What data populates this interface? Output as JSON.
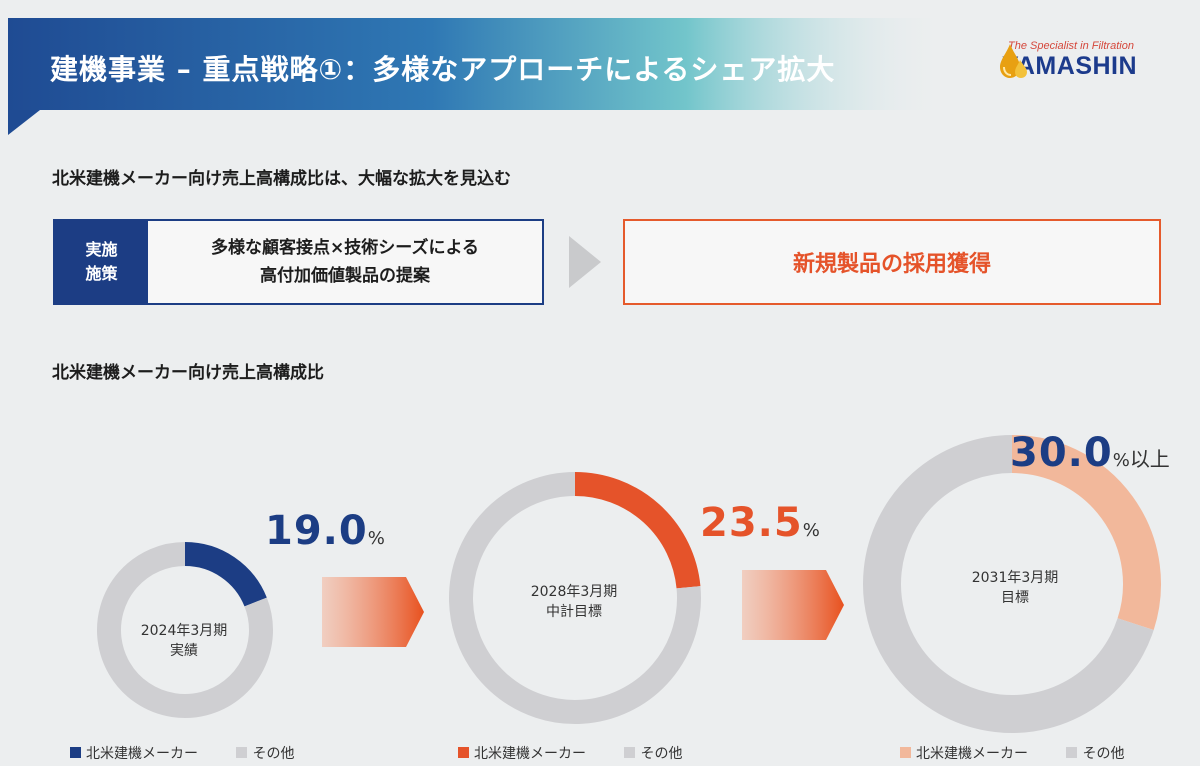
{
  "title": "建機事業 – 重点戦略①：多様なアプローチによるシェア拡大",
  "logo": {
    "tagline": "The Specialist in Filtration",
    "name": "YAMASHIN"
  },
  "heading1": "北米建機メーカー向け売上高構成比は、大幅な拡大を見込む",
  "measures": {
    "label": "実施\n施策",
    "text": "多様な顧客接点×技術シーズによる\n高付加価値製品の提案",
    "result": "新規製品の採用獲得"
  },
  "heading2": "北米建機メーカー向け売上高構成比",
  "colors": {
    "header_blue": "#1f4b93",
    "header_teal": "#6cc3c9",
    "navy": "#1c3d84",
    "orange": "#e55a2c",
    "peach": "#f2b89b",
    "gray": "#cfcfd2"
  },
  "chart_data": [
    {
      "type": "pie",
      "center_label": "2024年3月期\n実績",
      "slices": [
        {
          "label": "北米建機メーカー",
          "value": 19.0,
          "color": "#1c3d84"
        },
        {
          "label": "その他",
          "value": 81.0,
          "color": "#cfcfd2"
        }
      ],
      "value_label": "19.0",
      "unit": "%",
      "value_suffix": ""
    },
    {
      "type": "pie",
      "center_label": "2028年3月期\n中計目標",
      "slices": [
        {
          "label": "北米建機メーカー",
          "value": 23.5,
          "color": "#e5532a"
        },
        {
          "label": "その他",
          "value": 76.5,
          "color": "#cfcfd2"
        }
      ],
      "value_label": "23.5",
      "unit": "%",
      "value_suffix": ""
    },
    {
      "type": "pie",
      "center_label": "2031年3月期\n目標",
      "slices": [
        {
          "label": "北米建機メーカー",
          "value": 30.0,
          "color": "#f2b89b"
        },
        {
          "label": "その他",
          "value": 70.0,
          "color": "#cfcfd2"
        }
      ],
      "value_label": "30.0",
      "unit": "%",
      "value_suffix": "以上"
    }
  ]
}
